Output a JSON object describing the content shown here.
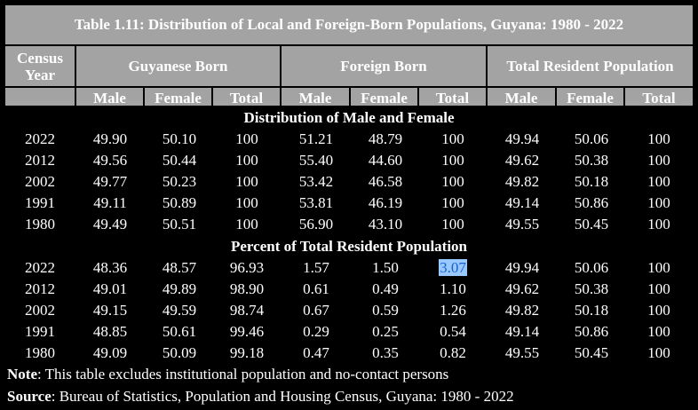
{
  "title": "Table 1.11: Distribution of Local and Foreign-Born Populations, Guyana: 1980 - 2022",
  "headers": {
    "census_year": "Census Year",
    "groups": [
      "Guyanese Born",
      "Foreign Born",
      "Total Resident Population"
    ],
    "sub": [
      "Male",
      "Female",
      "Total",
      "Male",
      "Female",
      "Total",
      "Male",
      "Female",
      "Total"
    ]
  },
  "sections": [
    {
      "title": "Distribution of Male and Female",
      "rows": [
        [
          "2022",
          "49.90",
          "50.10",
          "100",
          "51.21",
          "48.79",
          "100",
          "49.94",
          "50.06",
          "100"
        ],
        [
          "2012",
          "49.56",
          "50.44",
          "100",
          "55.40",
          "44.60",
          "100",
          "49.62",
          "50.38",
          "100"
        ],
        [
          "2002",
          "49.77",
          "50.23",
          "100",
          "53.42",
          "46.58",
          "100",
          "49.82",
          "50.18",
          "100"
        ],
        [
          "1991",
          "49.11",
          "50.89",
          "100",
          "53.81",
          "46.19",
          "100",
          "49.14",
          "50.86",
          "100"
        ],
        [
          "1980",
          "49.49",
          "50.51",
          "100",
          "56.90",
          "43.10",
          "100",
          "49.55",
          "50.45",
          "100"
        ]
      ]
    },
    {
      "title": "Percent of Total Resident Population",
      "rows": [
        [
          "2022",
          "48.36",
          "48.57",
          "96.93",
          "1.57",
          "1.50",
          "3.07",
          "49.94",
          "50.06",
          "100"
        ],
        [
          "2012",
          "49.01",
          "49.89",
          "98.90",
          "0.61",
          "0.49",
          "1.10",
          "49.62",
          "50.38",
          "100"
        ],
        [
          "2002",
          "49.15",
          "49.59",
          "98.74",
          "0.67",
          "0.59",
          "1.26",
          "49.82",
          "50.18",
          "100"
        ],
        [
          "1991",
          "48.85",
          "50.61",
          "99.46",
          "0.29",
          "0.25",
          "0.54",
          "49.14",
          "50.86",
          "100"
        ],
        [
          "1980",
          "49.09",
          "50.09",
          "99.18",
          "0.47",
          "0.35",
          "0.82",
          "49.55",
          "50.45",
          "100"
        ]
      ]
    }
  ],
  "note": {
    "label": "Note",
    "text": ": This table excludes institutional population and no-contact persons"
  },
  "source": {
    "label": "Source",
    "text": ": Bureau of Statistics, Population and Housing Census, Guyana: 1980 - 2022"
  },
  "colors": {
    "header_bg": "#a3a3a3",
    "background": "#000000",
    "selection": "#99c9ff"
  }
}
